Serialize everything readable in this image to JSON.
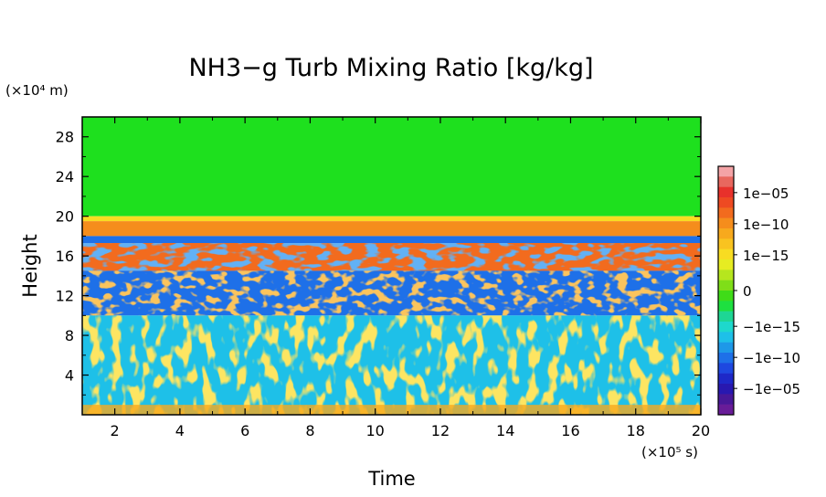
{
  "chart_data": {
    "type": "heatmap",
    "title": "NH3−g Turb Mixing Ratio [kg/kg]",
    "xlabel": "Time",
    "ylabel": "Height",
    "x_unit_label": "(×10⁵ s)",
    "y_unit_label": "(×10⁴ m)",
    "xlim": [
      1,
      20
    ],
    "ylim": [
      0,
      30
    ],
    "x_ticks": [
      "2",
      "4",
      "6",
      "8",
      "10",
      "12",
      "14",
      "16",
      "18",
      "20"
    ],
    "y_ticks": [
      "4",
      "8",
      "12",
      "16",
      "20",
      "24",
      "28"
    ],
    "colorbar": {
      "labels": [
        "1e−05",
        "1e−10",
        "1e−15",
        "0",
        "−1e−15",
        "−1e−10",
        "−1e−05"
      ],
      "colors": [
        "#f4a3a6",
        "#e8675e",
        "#e8312b",
        "#ee4a22",
        "#f26b1e",
        "#f58d1c",
        "#f7a91d",
        "#f9c320",
        "#f8dc22",
        "#e6ec22",
        "#b6e61e",
        "#7fde18",
        "#3fdc18",
        "#1ee040",
        "#1ed694",
        "#1ed8cc",
        "#1ec0e8",
        "#1e98e8",
        "#1e70e8",
        "#1e48e0",
        "#1e28c8",
        "#2818b0",
        "#481898",
        "#681c98"
      ]
    },
    "z_bands": [
      {
        "y_range": [
          20,
          30
        ],
        "level": "0",
        "color": "#1ee01e"
      },
      {
        "y_range": [
          19.5,
          20
        ],
        "level": "1e-15",
        "color": "#f8dc22"
      },
      {
        "y_range": [
          18,
          19.5
        ],
        "level": "1e-10",
        "color": "#f58d1c"
      },
      {
        "y_range": [
          17.3,
          18
        ],
        "level": "-1e-10",
        "color": "#1e70e8"
      },
      {
        "y_range": [
          14.5,
          17.3
        ],
        "level": "1e-10",
        "color": "#f26b1e"
      },
      {
        "y_range": [
          10,
          14.5
        ],
        "level": "-1e-10",
        "color": "#1e70e8"
      },
      {
        "y_range": [
          0,
          10
        ],
        "level": "-1e-15 / 1e-15 mixed",
        "color": "#1ec0e8"
      }
    ]
  }
}
